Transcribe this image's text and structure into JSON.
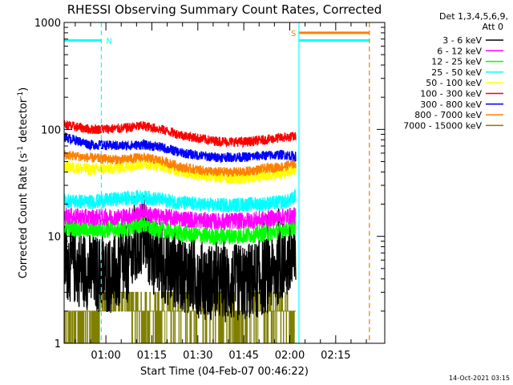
{
  "chart_data": {
    "type": "line",
    "title": "RHESSI Observing Summary Count Rates, Corrected",
    "xlabel": "Start Time (04-Feb-07 00:46:22)",
    "ylabel": "Corrected Count Rate (s",
    "ylabel_sup1": "-1",
    "ylabel_mid": " detector",
    "ylabel_sup2": "-1",
    "ylabel_end": ")",
    "yscale": "log",
    "ylim": [
      1,
      1000
    ],
    "xlim_minutes": [
      46.37,
      151.0
    ],
    "y_ticks": [
      {
        "value": 1,
        "label": "1"
      },
      {
        "value": 10,
        "label": "10"
      },
      {
        "value": 100,
        "label": "100"
      },
      {
        "value": 1000,
        "label": "1000"
      }
    ],
    "x_ticks": [
      {
        "minute": 60,
        "label": "01:00"
      },
      {
        "minute": 75,
        "label": "01:15"
      },
      {
        "minute": 90,
        "label": "01:30"
      },
      {
        "minute": 105,
        "label": "01:45"
      },
      {
        "minute": 120,
        "label": "02:00"
      },
      {
        "minute": 135,
        "label": "02:15"
      }
    ],
    "legend_header": [
      "Det 1,3,4,5,6,9,",
      "Att 0"
    ],
    "legend_position": "top-right",
    "data_end_minute": 122,
    "series": [
      {
        "name": "3 - 6 keV",
        "color": "#000000",
        "minutes": [
          46.5,
          50,
          55,
          60,
          65,
          70,
          72,
          75,
          80,
          85,
          90,
          95,
          100,
          105,
          110,
          115,
          118,
          120,
          122
        ],
        "values": [
          6.0,
          5.2,
          4.6,
          4.3,
          4.6,
          7.0,
          10.5,
          6.5,
          5.2,
          4.6,
          4.0,
          3.7,
          3.6,
          3.7,
          4.0,
          4.8,
          6.0,
          5.5,
          5.6
        ],
        "noise": 0.16
      },
      {
        "name": "6 - 12 keV",
        "color": "#ff00ff",
        "minutes": [
          46.5,
          55,
          65,
          70,
          72,
          75,
          85,
          95,
          105,
          115,
          120,
          122
        ],
        "values": [
          15.5,
          15.0,
          15.2,
          16.0,
          17.5,
          15.5,
          14.6,
          13.8,
          14.0,
          14.8,
          15.5,
          15.6
        ],
        "noise": 0.035
      },
      {
        "name": "12 - 25 keV",
        "color": "#00ff00",
        "minutes": [
          46.5,
          55,
          65,
          70,
          72,
          75,
          85,
          95,
          105,
          115,
          120,
          122
        ],
        "values": [
          12.2,
          11.5,
          11.6,
          12.5,
          13.0,
          11.8,
          10.6,
          9.9,
          10.2,
          11.0,
          12.0,
          12.3
        ],
        "noise": 0.035
      },
      {
        "name": "25 - 50 keV",
        "color": "#00ffff",
        "minutes": [
          46.5,
          55,
          65,
          72,
          78,
          85,
          95,
          105,
          115,
          120,
          122
        ],
        "values": [
          21.5,
          21.0,
          22.5,
          23.2,
          22.0,
          20.5,
          19.5,
          19.8,
          20.5,
          21.5,
          24.0
        ],
        "noise": 0.03
      },
      {
        "name": "50 - 100 keV",
        "color": "#ffff00",
        "minutes": [
          46.5,
          55,
          65,
          72,
          78,
          85,
          95,
          105,
          112,
          118,
          122
        ],
        "values": [
          45.0,
          42.0,
          44.0,
          48.0,
          46.0,
          40.0,
          36.0,
          35.0,
          37.0,
          39.0,
          42.0
        ],
        "noise": 0.025
      },
      {
        "name": "100 - 300 keV",
        "color": "#ff0000",
        "minutes": [
          46.5,
          55,
          65,
          72,
          78,
          85,
          95,
          105,
          112,
          118,
          122
        ],
        "values": [
          110,
          100,
          102,
          108,
          100,
          88,
          78,
          76,
          80,
          84,
          86
        ],
        "noise": 0.02
      },
      {
        "name": "300 - 800 keV",
        "color": "#0000ff",
        "minutes": [
          46.5,
          55,
          65,
          72,
          78,
          85,
          95,
          105,
          112,
          118,
          122
        ],
        "values": [
          85,
          72,
          70,
          72,
          68,
          60,
          55,
          55,
          57,
          58,
          56
        ],
        "noise": 0.02
      },
      {
        "name": "800 - 7000 keV",
        "color": "#ff8000",
        "minutes": [
          46.5,
          55,
          65,
          72,
          78,
          85,
          95,
          105,
          112,
          118,
          122
        ],
        "values": [
          58,
          54,
          52,
          55,
          51,
          44,
          40,
          40,
          43,
          45,
          48
        ],
        "noise": 0.02
      },
      {
        "name": "7000 - 15000 keV",
        "color": "#808000",
        "minutes": [
          46.5,
          122
        ],
        "values": [
          1.5,
          1.5
        ],
        "noise": 0,
        "style": "quantized"
      }
    ],
    "flag_lines": [
      {
        "label": "",
        "color": "#00ffff",
        "minutes": [
          46.5,
          58.5
        ],
        "value": 680
      },
      {
        "label": "N",
        "color": "#00ffff",
        "minute": 58.5,
        "style": "dashed-vertical"
      },
      {
        "label": "S",
        "color": "#ff8000",
        "minutes": [
          123,
          146
        ],
        "value": 800
      },
      {
        "label": "",
        "color": "#00ffff",
        "minutes": [
          123,
          146
        ],
        "value": 680
      },
      {
        "label": "",
        "color": "#00ffff",
        "minute": 123,
        "style": "vertical"
      },
      {
        "label": "",
        "color": "#00ffff",
        "minute": 146,
        "style": "dashed-vertical"
      },
      {
        "label": "",
        "color": "#ff8000",
        "minute": 146,
        "style": "dashed-vertical"
      }
    ],
    "timestamp": "14-Oct-2021 03:15"
  }
}
